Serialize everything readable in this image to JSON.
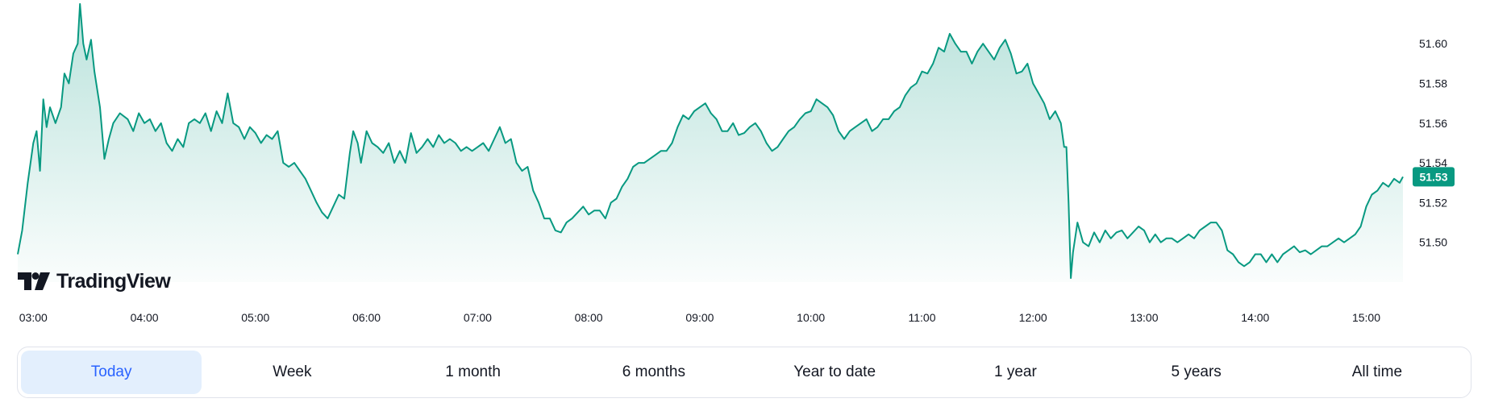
{
  "chart_data": {
    "type": "area",
    "x_ticks": [
      "03:00",
      "04:00",
      "05:00",
      "06:00",
      "07:00",
      "08:00",
      "09:00",
      "10:00",
      "11:00",
      "12:00",
      "13:00",
      "14:00",
      "15:00"
    ],
    "y_ticks": [
      "51.50",
      "51.52",
      "51.54",
      "51.56",
      "51.58",
      "51.60"
    ],
    "ylim": [
      51.48,
      51.622
    ],
    "xlim": [
      2.86,
      15.33
    ],
    "last_price": "51.53",
    "last_value": 51.533,
    "line_color": "#089981",
    "points": [
      [
        2.86,
        51.494
      ],
      [
        2.9,
        51.506
      ],
      [
        2.95,
        51.53
      ],
      [
        3.0,
        51.55
      ],
      [
        3.03,
        51.556
      ],
      [
        3.06,
        51.536
      ],
      [
        3.09,
        51.572
      ],
      [
        3.12,
        51.558
      ],
      [
        3.15,
        51.568
      ],
      [
        3.2,
        51.56
      ],
      [
        3.25,
        51.568
      ],
      [
        3.28,
        51.585
      ],
      [
        3.32,
        51.58
      ],
      [
        3.36,
        51.595
      ],
      [
        3.4,
        51.6
      ],
      [
        3.42,
        51.62
      ],
      [
        3.45,
        51.6
      ],
      [
        3.48,
        51.592
      ],
      [
        3.52,
        51.602
      ],
      [
        3.55,
        51.586
      ],
      [
        3.6,
        51.568
      ],
      [
        3.64,
        51.542
      ],
      [
        3.68,
        51.552
      ],
      [
        3.72,
        51.56
      ],
      [
        3.78,
        51.565
      ],
      [
        3.85,
        51.562
      ],
      [
        3.9,
        51.556
      ],
      [
        3.95,
        51.565
      ],
      [
        4.0,
        51.56
      ],
      [
        4.05,
        51.562
      ],
      [
        4.1,
        51.556
      ],
      [
        4.15,
        51.56
      ],
      [
        4.2,
        51.55
      ],
      [
        4.25,
        51.546
      ],
      [
        4.3,
        51.552
      ],
      [
        4.35,
        51.548
      ],
      [
        4.4,
        51.56
      ],
      [
        4.45,
        51.562
      ],
      [
        4.5,
        51.56
      ],
      [
        4.55,
        51.565
      ],
      [
        4.6,
        51.556
      ],
      [
        4.65,
        51.566
      ],
      [
        4.7,
        51.56
      ],
      [
        4.75,
        51.575
      ],
      [
        4.8,
        51.56
      ],
      [
        4.85,
        51.558
      ],
      [
        4.9,
        51.552
      ],
      [
        4.95,
        51.558
      ],
      [
        5.0,
        51.555
      ],
      [
        5.05,
        51.55
      ],
      [
        5.1,
        51.554
      ],
      [
        5.15,
        51.552
      ],
      [
        5.2,
        51.556
      ],
      [
        5.25,
        51.54
      ],
      [
        5.3,
        51.538
      ],
      [
        5.35,
        51.54
      ],
      [
        5.4,
        51.536
      ],
      [
        5.45,
        51.532
      ],
      [
        5.5,
        51.526
      ],
      [
        5.55,
        51.52
      ],
      [
        5.6,
        51.515
      ],
      [
        5.65,
        51.512
      ],
      [
        5.7,
        51.518
      ],
      [
        5.75,
        51.524
      ],
      [
        5.8,
        51.522
      ],
      [
        5.85,
        51.545
      ],
      [
        5.88,
        51.556
      ],
      [
        5.92,
        51.55
      ],
      [
        5.95,
        51.54
      ],
      [
        6.0,
        51.556
      ],
      [
        6.05,
        51.55
      ],
      [
        6.1,
        51.548
      ],
      [
        6.15,
        51.545
      ],
      [
        6.2,
        51.55
      ],
      [
        6.25,
        51.54
      ],
      [
        6.3,
        51.546
      ],
      [
        6.35,
        51.54
      ],
      [
        6.4,
        51.555
      ],
      [
        6.45,
        51.545
      ],
      [
        6.5,
        51.548
      ],
      [
        6.55,
        51.552
      ],
      [
        6.6,
        51.548
      ],
      [
        6.65,
        51.554
      ],
      [
        6.7,
        51.55
      ],
      [
        6.75,
        51.552
      ],
      [
        6.8,
        51.55
      ],
      [
        6.85,
        51.546
      ],
      [
        6.9,
        51.548
      ],
      [
        6.95,
        51.546
      ],
      [
        7.0,
        51.548
      ],
      [
        7.05,
        51.55
      ],
      [
        7.1,
        51.546
      ],
      [
        7.15,
        51.552
      ],
      [
        7.2,
        51.558
      ],
      [
        7.25,
        51.55
      ],
      [
        7.3,
        51.552
      ],
      [
        7.35,
        51.54
      ],
      [
        7.4,
        51.536
      ],
      [
        7.45,
        51.538
      ],
      [
        7.5,
        51.526
      ],
      [
        7.55,
        51.52
      ],
      [
        7.6,
        51.512
      ],
      [
        7.65,
        51.512
      ],
      [
        7.7,
        51.506
      ],
      [
        7.75,
        51.505
      ],
      [
        7.8,
        51.51
      ],
      [
        7.85,
        51.512
      ],
      [
        7.9,
        51.515
      ],
      [
        7.95,
        51.518
      ],
      [
        8.0,
        51.514
      ],
      [
        8.05,
        51.516
      ],
      [
        8.1,
        51.516
      ],
      [
        8.15,
        51.512
      ],
      [
        8.2,
        51.52
      ],
      [
        8.25,
        51.522
      ],
      [
        8.3,
        51.528
      ],
      [
        8.35,
        51.532
      ],
      [
        8.4,
        51.538
      ],
      [
        8.45,
        51.54
      ],
      [
        8.5,
        51.54
      ],
      [
        8.55,
        51.542
      ],
      [
        8.6,
        51.544
      ],
      [
        8.65,
        51.546
      ],
      [
        8.7,
        51.546
      ],
      [
        8.75,
        51.55
      ],
      [
        8.8,
        51.558
      ],
      [
        8.85,
        51.564
      ],
      [
        8.9,
        51.562
      ],
      [
        8.95,
        51.566
      ],
      [
        9.0,
        51.568
      ],
      [
        9.05,
        51.57
      ],
      [
        9.1,
        51.565
      ],
      [
        9.15,
        51.562
      ],
      [
        9.2,
        51.556
      ],
      [
        9.25,
        51.556
      ],
      [
        9.3,
        51.56
      ],
      [
        9.35,
        51.554
      ],
      [
        9.4,
        51.555
      ],
      [
        9.45,
        51.558
      ],
      [
        9.5,
        51.56
      ],
      [
        9.55,
        51.556
      ],
      [
        9.6,
        51.55
      ],
      [
        9.65,
        51.546
      ],
      [
        9.7,
        51.548
      ],
      [
        9.75,
        51.552
      ],
      [
        9.8,
        51.556
      ],
      [
        9.85,
        51.558
      ],
      [
        9.9,
        51.562
      ],
      [
        9.95,
        51.565
      ],
      [
        10.0,
        51.566
      ],
      [
        10.05,
        51.572
      ],
      [
        10.1,
        51.57
      ],
      [
        10.15,
        51.568
      ],
      [
        10.2,
        51.564
      ],
      [
        10.25,
        51.556
      ],
      [
        10.3,
        51.552
      ],
      [
        10.35,
        51.556
      ],
      [
        10.4,
        51.558
      ],
      [
        10.45,
        51.56
      ],
      [
        10.5,
        51.562
      ],
      [
        10.55,
        51.556
      ],
      [
        10.6,
        51.558
      ],
      [
        10.65,
        51.562
      ],
      [
        10.7,
        51.562
      ],
      [
        10.75,
        51.566
      ],
      [
        10.8,
        51.568
      ],
      [
        10.85,
        51.574
      ],
      [
        10.9,
        51.578
      ],
      [
        10.95,
        51.58
      ],
      [
        11.0,
        51.586
      ],
      [
        11.05,
        51.585
      ],
      [
        11.1,
        51.59
      ],
      [
        11.15,
        51.598
      ],
      [
        11.2,
        51.596
      ],
      [
        11.25,
        51.605
      ],
      [
        11.3,
        51.6
      ],
      [
        11.35,
        51.596
      ],
      [
        11.4,
        51.596
      ],
      [
        11.45,
        51.59
      ],
      [
        11.5,
        51.596
      ],
      [
        11.55,
        51.6
      ],
      [
        11.6,
        51.596
      ],
      [
        11.65,
        51.592
      ],
      [
        11.7,
        51.598
      ],
      [
        11.75,
        51.602
      ],
      [
        11.8,
        51.595
      ],
      [
        11.85,
        51.585
      ],
      [
        11.9,
        51.586
      ],
      [
        11.95,
        51.59
      ],
      [
        12.0,
        51.58
      ],
      [
        12.05,
        51.575
      ],
      [
        12.1,
        51.57
      ],
      [
        12.15,
        51.562
      ],
      [
        12.2,
        51.566
      ],
      [
        12.25,
        51.56
      ],
      [
        12.28,
        51.548
      ],
      [
        12.3,
        51.548
      ],
      [
        12.32,
        51.52
      ],
      [
        12.34,
        51.482
      ],
      [
        12.36,
        51.495
      ],
      [
        12.4,
        51.51
      ],
      [
        12.45,
        51.5
      ],
      [
        12.5,
        51.498
      ],
      [
        12.55,
        51.505
      ],
      [
        12.6,
        51.5
      ],
      [
        12.65,
        51.506
      ],
      [
        12.7,
        51.502
      ],
      [
        12.75,
        51.505
      ],
      [
        12.8,
        51.506
      ],
      [
        12.85,
        51.502
      ],
      [
        12.9,
        51.505
      ],
      [
        12.95,
        51.508
      ],
      [
        13.0,
        51.506
      ],
      [
        13.05,
        51.5
      ],
      [
        13.1,
        51.504
      ],
      [
        13.15,
        51.5
      ],
      [
        13.2,
        51.502
      ],
      [
        13.25,
        51.502
      ],
      [
        13.3,
        51.5
      ],
      [
        13.35,
        51.502
      ],
      [
        13.4,
        51.504
      ],
      [
        13.45,
        51.502
      ],
      [
        13.5,
        51.506
      ],
      [
        13.55,
        51.508
      ],
      [
        13.6,
        51.51
      ],
      [
        13.65,
        51.51
      ],
      [
        13.7,
        51.506
      ],
      [
        13.75,
        51.496
      ],
      [
        13.8,
        51.494
      ],
      [
        13.85,
        51.49
      ],
      [
        13.9,
        51.488
      ],
      [
        13.95,
        51.49
      ],
      [
        14.0,
        51.494
      ],
      [
        14.05,
        51.494
      ],
      [
        14.1,
        51.49
      ],
      [
        14.15,
        51.494
      ],
      [
        14.2,
        51.49
      ],
      [
        14.25,
        51.494
      ],
      [
        14.3,
        51.496
      ],
      [
        14.35,
        51.498
      ],
      [
        14.4,
        51.495
      ],
      [
        14.45,
        51.496
      ],
      [
        14.5,
        51.494
      ],
      [
        14.55,
        51.496
      ],
      [
        14.6,
        51.498
      ],
      [
        14.65,
        51.498
      ],
      [
        14.7,
        51.5
      ],
      [
        14.75,
        51.502
      ],
      [
        14.8,
        51.5
      ],
      [
        14.85,
        51.502
      ],
      [
        14.9,
        51.504
      ],
      [
        14.95,
        51.508
      ],
      [
        15.0,
        51.518
      ],
      [
        15.05,
        51.524
      ],
      [
        15.1,
        51.526
      ],
      [
        15.15,
        51.53
      ],
      [
        15.2,
        51.528
      ],
      [
        15.25,
        51.532
      ],
      [
        15.3,
        51.53
      ],
      [
        15.33,
        51.533
      ]
    ]
  },
  "logo": {
    "text": "TradingView"
  },
  "range_buttons": [
    "Today",
    "Week",
    "1 month",
    "6 months",
    "Year to date",
    "1 year",
    "5 years",
    "All time"
  ]
}
